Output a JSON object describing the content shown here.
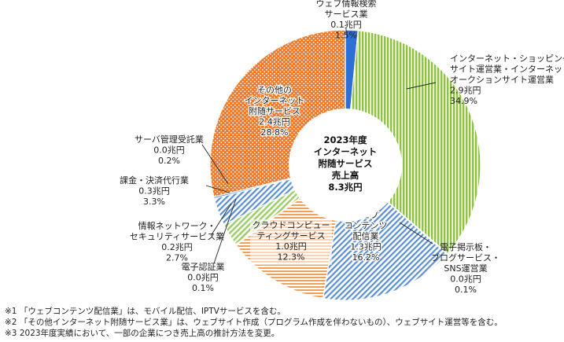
{
  "chart_data": {
    "type": "pie",
    "total_label_lines": [
      "2023年度",
      "インターネット",
      "附随サービス",
      "売上高",
      "8.3兆円"
    ],
    "slices": [
      {
        "label_lines": [
          "ウェブ情報検索",
          "サービス業"
        ],
        "value_label": "0.1兆円",
        "percent_label": "1.5%",
        "value": 0.1,
        "percent": 1.5,
        "color": "#2e6fd6",
        "pattern": "solid"
      },
      {
        "label_lines": [
          "インターネット・ショッピング",
          "サイト運営業・インターネット・",
          "オークションサイト運営業"
        ],
        "value_label": "2.9兆円",
        "percent_label": "34.9%",
        "value": 2.9,
        "percent": 34.9,
        "color": "#8fc04a",
        "pattern": "vertical"
      },
      {
        "label_lines": [
          "電子掲示板・",
          "ブログサービス・",
          "SNS運営業"
        ],
        "value_label": "0.0兆円",
        "percent_label": "0.1%",
        "value": 0.0,
        "percent": 0.1,
        "color": "#5a8fd6",
        "pattern": "solid"
      },
      {
        "label_lines": [
          "ウェブ",
          "コンテンツ",
          "配信業"
        ],
        "value_label": "1.3兆円",
        "percent_label": "16.2%",
        "value": 1.3,
        "percent": 16.2,
        "color": "#5a8fd6",
        "pattern": "diagonal"
      },
      {
        "label_lines": [
          "クラウドコンピュー",
          "ティングサービス"
        ],
        "value_label": "1.0兆円",
        "percent_label": "12.3%",
        "value": 1.0,
        "percent": 12.3,
        "color": "#f0a05a",
        "pattern": "horizontal"
      },
      {
        "label_lines": [
          "電子認証業"
        ],
        "value_label": "0.0兆円",
        "percent_label": "0.1%",
        "value": 0.0,
        "percent": 0.1,
        "color": "#7ab648",
        "pattern": "solid"
      },
      {
        "label_lines": [
          "情報ネットワーク・",
          "セキュリティサービス業"
        ],
        "value_label": "0.2兆円",
        "percent_label": "2.7%",
        "value": 0.2,
        "percent": 2.7,
        "color": "#9ccc66",
        "pattern": "diagonal"
      },
      {
        "label_lines": [
          "課金・決済代行業"
        ],
        "value_label": "0.3兆円",
        "percent_label": "3.3%",
        "value": 0.3,
        "percent": 3.3,
        "color": "#5a8fd6",
        "pattern": "diagonal"
      },
      {
        "label_lines": [
          "サーバ管理受託業"
        ],
        "value_label": "0.0兆円",
        "percent_label": "0.2%",
        "value": 0.0,
        "percent": 0.2,
        "color": "#2e6fd6",
        "pattern": "solid"
      },
      {
        "label_lines": [
          "その他の",
          "インターネット",
          "附随サービス"
        ],
        "value_label": "2.4兆円",
        "percent_label": "28.8%",
        "value": 2.4,
        "percent": 28.8,
        "color": "#f07a2a",
        "pattern": "dots"
      }
    ]
  },
  "footnotes": [
    {
      "mark": "※1",
      "text": "「ウェブコンテンツ配信業」は、モバイル配信、IPTVサービスを含む。"
    },
    {
      "mark": "※2",
      "text": "「その他インターネット附随サービス業」は、ウェブサイト作成（プログラム作成を伴わないもの）、ウェブサイト運営等を含む。"
    },
    {
      "mark": "※3",
      "text": "2023年度実績において、一部の企業につき売上高の推計方法を変更。"
    }
  ]
}
